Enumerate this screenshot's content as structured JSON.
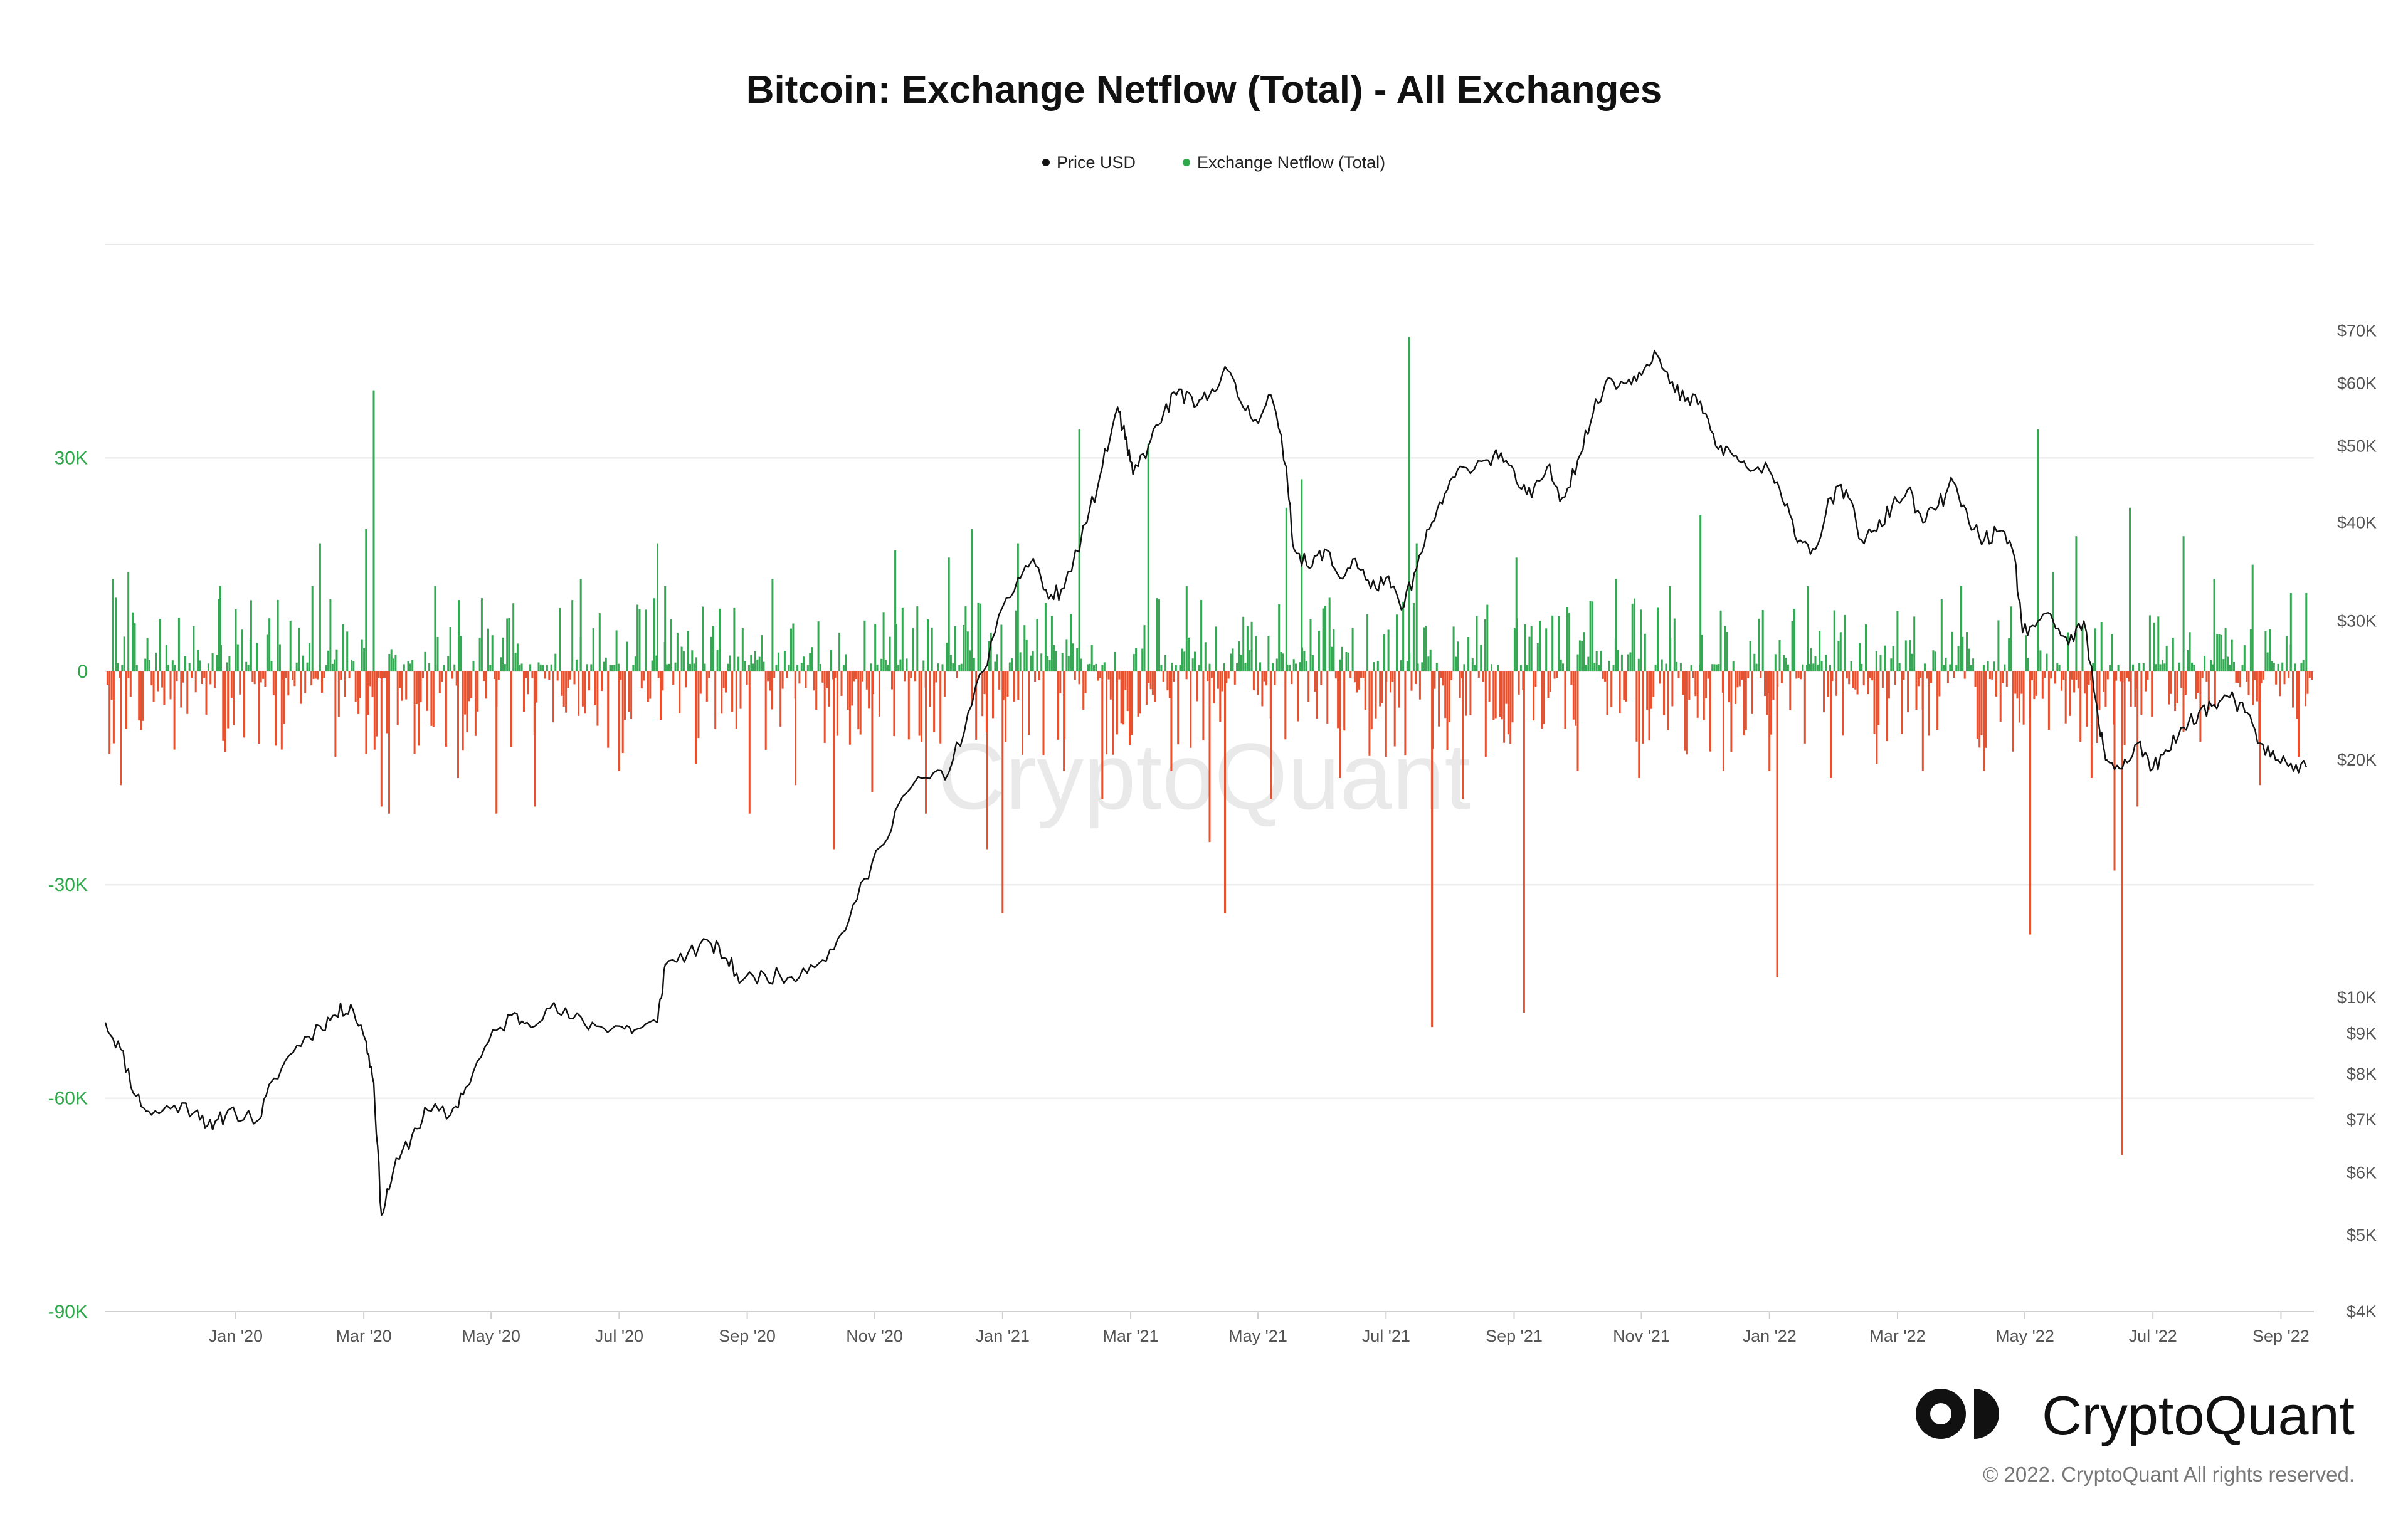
{
  "chart_data": {
    "type": "bar",
    "title": "Bitcoin: Exchange Netflow (Total) - All Exchanges",
    "legend": [
      {
        "label": "Price USD",
        "color": "#111111"
      },
      {
        "label": "Exchange Netflow (Total)",
        "color": "#2ea84a"
      }
    ],
    "watermark": "CryptoQuant",
    "brand": "CryptoQuant",
    "copyright": "© 2022. CryptoQuant All rights reserved.",
    "x_range": [
      2019.83,
      2022.71
    ],
    "x_ticks": [
      {
        "label": "Jan '20",
        "value": 2020.0
      },
      {
        "label": "Mar '20",
        "value": 2020.167
      },
      {
        "label": "May '20",
        "value": 2020.333
      },
      {
        "label": "Jul '20",
        "value": 2020.5
      },
      {
        "label": "Sep '20",
        "value": 2020.667
      },
      {
        "label": "Nov '20",
        "value": 2020.833
      },
      {
        "label": "Jan '21",
        "value": 2021.0
      },
      {
        "label": "Mar '21",
        "value": 2021.167
      },
      {
        "label": "May '21",
        "value": 2021.333
      },
      {
        "label": "Jul '21",
        "value": 2021.5
      },
      {
        "label": "Sep '21",
        "value": 2021.667
      },
      {
        "label": "Nov '21",
        "value": 2021.833
      },
      {
        "label": "Jan '22",
        "value": 2022.0
      },
      {
        "label": "Mar '22",
        "value": 2022.167
      },
      {
        "label": "May '22",
        "value": 2022.333
      },
      {
        "label": "Jul '22",
        "value": 2022.5
      },
      {
        "label": "Sep '22",
        "value": 2022.667
      }
    ],
    "left_axis": {
      "name": "Exchange Netflow (Total)",
      "range": [
        -90000,
        60000
      ],
      "ticks": [
        {
          "label": "30K",
          "value": 30000
        },
        {
          "label": "0",
          "value": 0
        },
        {
          "label": "-30K",
          "value": -30000
        },
        {
          "label": "-60K",
          "value": -60000
        },
        {
          "label": "-90K",
          "value": -90000
        }
      ]
    },
    "right_axis": {
      "name": "Price USD",
      "scale": "log",
      "range": [
        4000,
        90000
      ],
      "ticks": [
        {
          "label": "$70K",
          "value": 70000
        },
        {
          "label": "$60K",
          "value": 60000
        },
        {
          "label": "$50K",
          "value": 50000
        },
        {
          "label": "$40K",
          "value": 40000
        },
        {
          "label": "$30K",
          "value": 30000
        },
        {
          "label": "$20K",
          "value": 20000
        },
        {
          "label": "$10K",
          "value": 10000
        },
        {
          "label": "$9K",
          "value": 9000
        },
        {
          "label": "$8K",
          "value": 8000
        },
        {
          "label": "$7K",
          "value": 7000
        },
        {
          "label": "$6K",
          "value": 6000
        },
        {
          "label": "$5K",
          "value": 5000
        },
        {
          "label": "$4K",
          "value": 4000
        }
      ]
    },
    "netflow_notable": [
      {
        "t": 2019.84,
        "v": 13000
      },
      {
        "t": 2019.85,
        "v": -16000
      },
      {
        "t": 2019.86,
        "v": 14000
      },
      {
        "t": 2019.92,
        "v": -11000
      },
      {
        "t": 2019.98,
        "v": 12000
      },
      {
        "t": 2019.99,
        "v": -8000
      },
      {
        "t": 2020.02,
        "v": 10000
      },
      {
        "t": 2020.06,
        "v": -11000
      },
      {
        "t": 2020.1,
        "v": 12000
      },
      {
        "t": 2020.11,
        "v": 18000
      },
      {
        "t": 2020.13,
        "v": -12000
      },
      {
        "t": 2020.16,
        "v": -6000
      },
      {
        "t": 2020.17,
        "v": 20000
      },
      {
        "t": 2020.18,
        "v": 39500
      },
      {
        "t": 2020.19,
        "v": -19000
      },
      {
        "t": 2020.2,
        "v": -20000
      },
      {
        "t": 2020.26,
        "v": 12000
      },
      {
        "t": 2020.29,
        "v": -15000
      },
      {
        "t": 2020.34,
        "v": -20000
      },
      {
        "t": 2020.39,
        "v": -19000
      },
      {
        "t": 2020.45,
        "v": 13000
      },
      {
        "t": 2020.5,
        "v": -14000
      },
      {
        "t": 2020.55,
        "v": 18000
      },
      {
        "t": 2020.56,
        "v": 12000
      },
      {
        "t": 2020.6,
        "v": -13000
      },
      {
        "t": 2020.67,
        "v": -20000
      },
      {
        "t": 2020.7,
        "v": 13000
      },
      {
        "t": 2020.73,
        "v": -16000
      },
      {
        "t": 2020.78,
        "v": -25000
      },
      {
        "t": 2020.83,
        "v": -17000
      },
      {
        "t": 2020.86,
        "v": 17000
      },
      {
        "t": 2020.9,
        "v": -20000
      },
      {
        "t": 2020.93,
        "v": 16000
      },
      {
        "t": 2020.96,
        "v": 20000
      },
      {
        "t": 2020.98,
        "v": -25000
      },
      {
        "t": 2021.0,
        "v": -34000
      },
      {
        "t": 2021.02,
        "v": 18000
      },
      {
        "t": 2021.08,
        "v": -14000
      },
      {
        "t": 2021.1,
        "v": 34000
      },
      {
        "t": 2021.13,
        "v": -18000
      },
      {
        "t": 2021.19,
        "v": 32000
      },
      {
        "t": 2021.22,
        "v": -14000
      },
      {
        "t": 2021.24,
        "v": 12000
      },
      {
        "t": 2021.27,
        "v": -24000
      },
      {
        "t": 2021.29,
        "v": -34000
      },
      {
        "t": 2021.35,
        "v": -18000
      },
      {
        "t": 2021.37,
        "v": 23000
      },
      {
        "t": 2021.39,
        "v": 27000
      },
      {
        "t": 2021.44,
        "v": -15000
      },
      {
        "t": 2021.5,
        "v": -12000
      },
      {
        "t": 2021.53,
        "v": 47000
      },
      {
        "t": 2021.54,
        "v": 18000
      },
      {
        "t": 2021.56,
        "v": -50000
      },
      {
        "t": 2021.6,
        "v": -18000
      },
      {
        "t": 2021.63,
        "v": -12000
      },
      {
        "t": 2021.67,
        "v": 16000
      },
      {
        "t": 2021.68,
        "v": -48000
      },
      {
        "t": 2021.75,
        "v": -14000
      },
      {
        "t": 2021.8,
        "v": 13000
      },
      {
        "t": 2021.83,
        "v": -15000
      },
      {
        "t": 2021.87,
        "v": 12000
      },
      {
        "t": 2021.91,
        "v": 22000
      },
      {
        "t": 2021.94,
        "v": -14000
      },
      {
        "t": 2022.0,
        "v": -14000
      },
      {
        "t": 2022.01,
        "v": -43000
      },
      {
        "t": 2022.05,
        "v": 12000
      },
      {
        "t": 2022.08,
        "v": -15000
      },
      {
        "t": 2022.14,
        "v": -13000
      },
      {
        "t": 2022.2,
        "v": -14000
      },
      {
        "t": 2022.25,
        "v": 12000
      },
      {
        "t": 2022.28,
        "v": -14000
      },
      {
        "t": 2022.34,
        "v": -37000
      },
      {
        "t": 2022.35,
        "v": 34000
      },
      {
        "t": 2022.37,
        "v": 14000
      },
      {
        "t": 2022.4,
        "v": 19000
      },
      {
        "t": 2022.42,
        "v": -15000
      },
      {
        "t": 2022.45,
        "v": -28000
      },
      {
        "t": 2022.46,
        "v": -68000
      },
      {
        "t": 2022.47,
        "v": 23000
      },
      {
        "t": 2022.48,
        "v": -19000
      },
      {
        "t": 2022.54,
        "v": 19000
      },
      {
        "t": 2022.58,
        "v": 13000
      },
      {
        "t": 2022.63,
        "v": 15000
      },
      {
        "t": 2022.64,
        "v": -16000
      },
      {
        "t": 2022.68,
        "v": 11000
      },
      {
        "t": 2022.69,
        "v": -12000
      },
      {
        "t": 2022.7,
        "v": 11000
      }
    ],
    "price_series": [
      [
        2019.83,
        9300
      ],
      [
        2019.85,
        8600
      ],
      [
        2019.87,
        7500
      ],
      [
        2019.89,
        7100
      ],
      [
        2019.92,
        7300
      ],
      [
        2019.95,
        7200
      ],
      [
        2019.97,
        6800
      ],
      [
        2019.99,
        7200
      ],
      [
        2020.03,
        7000
      ],
      [
        2020.05,
        7900
      ],
      [
        2020.08,
        8700
      ],
      [
        2020.11,
        9200
      ],
      [
        2020.13,
        9500
      ],
      [
        2020.15,
        9800
      ],
      [
        2020.17,
        8800
      ],
      [
        2020.18,
        7800
      ],
      [
        2020.19,
        5300
      ],
      [
        2020.205,
        6000
      ],
      [
        2020.23,
        6700
      ],
      [
        2020.25,
        7200
      ],
      [
        2020.28,
        7100
      ],
      [
        2020.3,
        7700
      ],
      [
        2020.33,
        8800
      ],
      [
        2020.36,
        9500
      ],
      [
        2020.38,
        9300
      ],
      [
        2020.41,
        9700
      ],
      [
        2020.44,
        9400
      ],
      [
        2020.47,
        9200
      ],
      [
        2020.5,
        9200
      ],
      [
        2020.52,
        9100
      ],
      [
        2020.55,
        9300
      ],
      [
        2020.56,
        11000
      ],
      [
        2020.59,
        11400
      ],
      [
        2020.62,
        11700
      ],
      [
        2020.64,
        11200
      ],
      [
        2020.66,
        10500
      ],
      [
        2020.69,
        10700
      ],
      [
        2020.72,
        10600
      ],
      [
        2020.75,
        11000
      ],
      [
        2020.78,
        11500
      ],
      [
        2020.81,
        13300
      ],
      [
        2020.84,
        15500
      ],
      [
        2020.87,
        18000
      ],
      [
        2020.9,
        19000
      ],
      [
        2020.93,
        19300
      ],
      [
        2020.96,
        23500
      ],
      [
        2020.99,
        29000
      ],
      [
        2021.02,
        34000
      ],
      [
        2021.04,
        36000
      ],
      [
        2021.06,
        32000
      ],
      [
        2021.08,
        33000
      ],
      [
        2021.11,
        40000
      ],
      [
        2021.13,
        47000
      ],
      [
        2021.15,
        56000
      ],
      [
        2021.16,
        51000
      ],
      [
        2021.17,
        46000
      ],
      [
        2021.19,
        50000
      ],
      [
        2021.21,
        55000
      ],
      [
        2021.23,
        59000
      ],
      [
        2021.25,
        56000
      ],
      [
        2021.27,
        58000
      ],
      [
        2021.29,
        63000
      ],
      [
        2021.31,
        57000
      ],
      [
        2021.33,
        54000
      ],
      [
        2021.35,
        58000
      ],
      [
        2021.37,
        47000
      ],
      [
        2021.38,
        37000
      ],
      [
        2021.4,
        35000
      ],
      [
        2021.42,
        37000
      ],
      [
        2021.44,
        34000
      ],
      [
        2021.46,
        36000
      ],
      [
        2021.48,
        33000
      ],
      [
        2021.5,
        34000
      ],
      [
        2021.52,
        31000
      ],
      [
        2021.54,
        35000
      ],
      [
        2021.56,
        40000
      ],
      [
        2021.58,
        44000
      ],
      [
        2021.6,
        47000
      ],
      [
        2021.63,
        48000
      ],
      [
        2021.65,
        49000
      ],
      [
        2021.67,
        45000
      ],
      [
        2021.69,
        43000
      ],
      [
        2021.71,
        47000
      ],
      [
        2021.73,
        43000
      ],
      [
        2021.75,
        48000
      ],
      [
        2021.77,
        55000
      ],
      [
        2021.79,
        61000
      ],
      [
        2021.81,
        60000
      ],
      [
        2021.83,
        62000
      ],
      [
        2021.85,
        66000
      ],
      [
        2021.87,
        60000
      ],
      [
        2021.89,
        57000
      ],
      [
        2021.91,
        57000
      ],
      [
        2021.93,
        50000
      ],
      [
        2021.95,
        49000
      ],
      [
        2021.97,
        47000
      ],
      [
        2022.0,
        46500
      ],
      [
        2022.02,
        42000
      ],
      [
        2022.04,
        38000
      ],
      [
        2022.06,
        37000
      ],
      [
        2022.08,
        43000
      ],
      [
        2022.1,
        44000
      ],
      [
        2022.12,
        38000
      ],
      [
        2022.14,
        39000
      ],
      [
        2022.16,
        42000
      ],
      [
        2022.18,
        44000
      ],
      [
        2022.2,
        40000
      ],
      [
        2022.22,
        42000
      ],
      [
        2022.24,
        45000
      ],
      [
        2022.26,
        40000
      ],
      [
        2022.28,
        38000
      ],
      [
        2022.3,
        39000
      ],
      [
        2022.32,
        36000
      ],
      [
        2022.33,
        29000
      ],
      [
        2022.35,
        30000
      ],
      [
        2022.37,
        30000
      ],
      [
        2022.39,
        28000
      ],
      [
        2022.41,
        30000
      ],
      [
        2022.43,
        22000
      ],
      [
        2022.44,
        20000
      ],
      [
        2022.46,
        19500
      ],
      [
        2022.48,
        21000
      ],
      [
        2022.5,
        19500
      ],
      [
        2022.52,
        20500
      ],
      [
        2022.54,
        22000
      ],
      [
        2022.56,
        23000
      ],
      [
        2022.58,
        23500
      ],
      [
        2022.6,
        24000
      ],
      [
        2022.62,
        23000
      ],
      [
        2022.64,
        21000
      ],
      [
        2022.66,
        20000
      ],
      [
        2022.68,
        19800
      ],
      [
        2022.7,
        19600
      ]
    ]
  }
}
